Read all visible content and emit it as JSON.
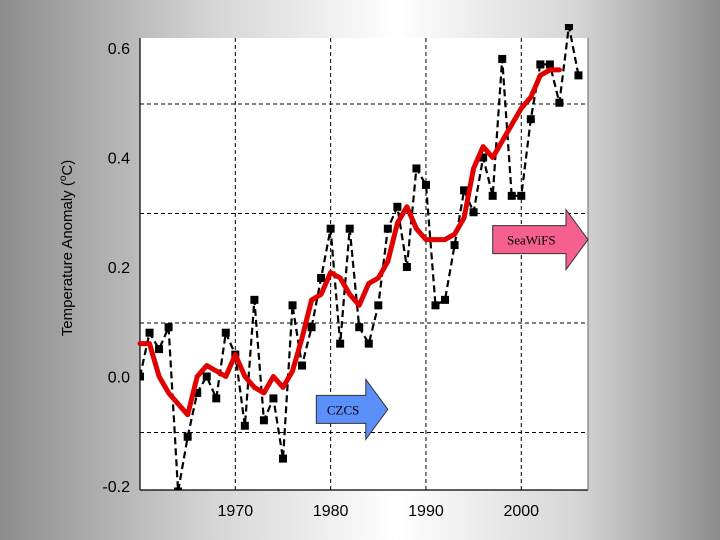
{
  "chart_data": {
    "type": "line",
    "ylabel_main": "Temperature Anomaly (",
    "ylabel_sup": "o",
    "ylabel_tail": "C)",
    "xlim": [
      1960,
      2007
    ],
    "ylim": [
      -0.2,
      0.6
    ],
    "grid": true,
    "x_ticks": [
      1970,
      1980,
      1990,
      2000
    ],
    "x_tick_labels": [
      "1970",
      "1980",
      "1990",
      "2000"
    ],
    "y_ticks": [
      -0.2,
      0.0,
      0.2,
      0.4,
      0.6
    ],
    "y_tick_labels": [
      "-0.2",
      "0.0",
      "0.2",
      "0.4",
      "0.6"
    ],
    "series": [
      {
        "style": "dashed-with-square-markers",
        "color": "#000000",
        "x": [
          1960,
          1961,
          1962,
          1963,
          1964,
          1965,
          1966,
          1967,
          1968,
          1969,
          1970,
          1971,
          1972,
          1973,
          1974,
          1975,
          1976,
          1977,
          1978,
          1979,
          1980,
          1981,
          1982,
          1983,
          1984,
          1985,
          1986,
          1987,
          1988,
          1989,
          1990,
          1991,
          1992,
          1993,
          1994,
          1995,
          1996,
          1997,
          1998,
          1999,
          2000,
          2001,
          2002,
          2003,
          2004,
          2005,
          2006
        ],
        "y": [
          0.0,
          0.08,
          0.05,
          0.09,
          -0.21,
          -0.11,
          -0.03,
          0.0,
          -0.04,
          0.08,
          0.04,
          -0.09,
          0.14,
          -0.08,
          -0.04,
          -0.15,
          0.13,
          0.02,
          0.09,
          0.18,
          0.27,
          0.06,
          0.27,
          0.09,
          0.06,
          0.13,
          0.27,
          0.31,
          0.2,
          0.38,
          0.35,
          0.13,
          0.14,
          0.24,
          0.34,
          0.3,
          0.4,
          0.33,
          0.58,
          0.33,
          0.33,
          0.47,
          0.57,
          0.57,
          0.5,
          0.64,
          0.55
        ]
      },
      {
        "style": "smoothed",
        "color": "#e00000",
        "x": [
          1960,
          1961,
          1962,
          1963,
          1964,
          1965,
          1966,
          1967,
          1968,
          1969,
          1970,
          1971,
          1972,
          1973,
          1974,
          1975,
          1976,
          1977,
          1978,
          1979,
          1980,
          1981,
          1982,
          1983,
          1984,
          1985,
          1986,
          1987,
          1988,
          1989,
          1990,
          1991,
          1992,
          1993,
          1994,
          1995,
          1996,
          1997,
          1998,
          1999,
          2000,
          2001,
          2002,
          2003,
          2004
        ],
        "y": [
          0.06,
          0.06,
          0.0,
          -0.03,
          -0.05,
          -0.07,
          0.0,
          0.02,
          0.01,
          0.0,
          0.04,
          0.0,
          -0.02,
          -0.03,
          0.0,
          -0.02,
          0.01,
          0.07,
          0.14,
          0.15,
          0.19,
          0.18,
          0.15,
          0.13,
          0.17,
          0.18,
          0.21,
          0.28,
          0.31,
          0.27,
          0.25,
          0.25,
          0.25,
          0.26,
          0.29,
          0.38,
          0.42,
          0.4,
          0.43,
          0.46,
          0.49,
          0.51,
          0.55,
          0.56,
          0.56
        ]
      }
    ],
    "annotations": [
      {
        "label": "CZCS",
        "color": "#5b8ff9",
        "x_start": 1978.5,
        "x_end": 1986,
        "y": -0.06
      },
      {
        "label": "SeaWiFS",
        "color": "#f5608e",
        "x_start": 1997,
        "x_end": 2007,
        "y": 0.25
      }
    ]
  }
}
